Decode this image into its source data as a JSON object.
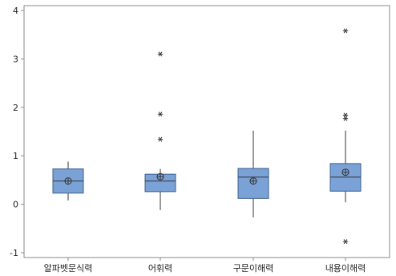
{
  "chart_data": {
    "type": "boxplot",
    "categories": [
      "알파벳문식력",
      "어휘력",
      "구문이해력",
      "내용이해력"
    ],
    "ylim": [
      -1.1,
      4.1
    ],
    "yticks": [
      "-1",
      "0",
      "1",
      "2",
      "3",
      "4"
    ],
    "grid": false,
    "boxes": [
      {
        "name": "알파벳문식력",
        "whisker_low": 0.08,
        "q1": 0.23,
        "median": 0.48,
        "q3": 0.73,
        "whisker_high": 0.88,
        "mean": 0.48,
        "outliers": []
      },
      {
        "name": "어휘력",
        "whisker_low": -0.12,
        "q1": 0.26,
        "median": 0.48,
        "q3": 0.62,
        "whisker_high": 0.73,
        "mean": 0.57,
        "outliers": [
          3.1,
          1.86,
          1.34
        ]
      },
      {
        "name": "구문이해력",
        "whisker_low": -0.27,
        "q1": 0.12,
        "median": 0.56,
        "q3": 0.74,
        "whisker_high": 1.52,
        "mean": 0.48,
        "outliers": []
      },
      {
        "name": "내용이해력",
        "whisker_low": 0.04,
        "q1": 0.27,
        "median": 0.56,
        "q3": 0.84,
        "whisker_high": 1.52,
        "mean": 0.66,
        "outliers": [
          3.58,
          1.84,
          1.77,
          -0.77
        ]
      }
    ],
    "colors": {
      "box_fill": "#7aa2d6",
      "box_stroke": "#3d5f8f",
      "line": "#333333",
      "frame": "#8a8a8a"
    }
  }
}
